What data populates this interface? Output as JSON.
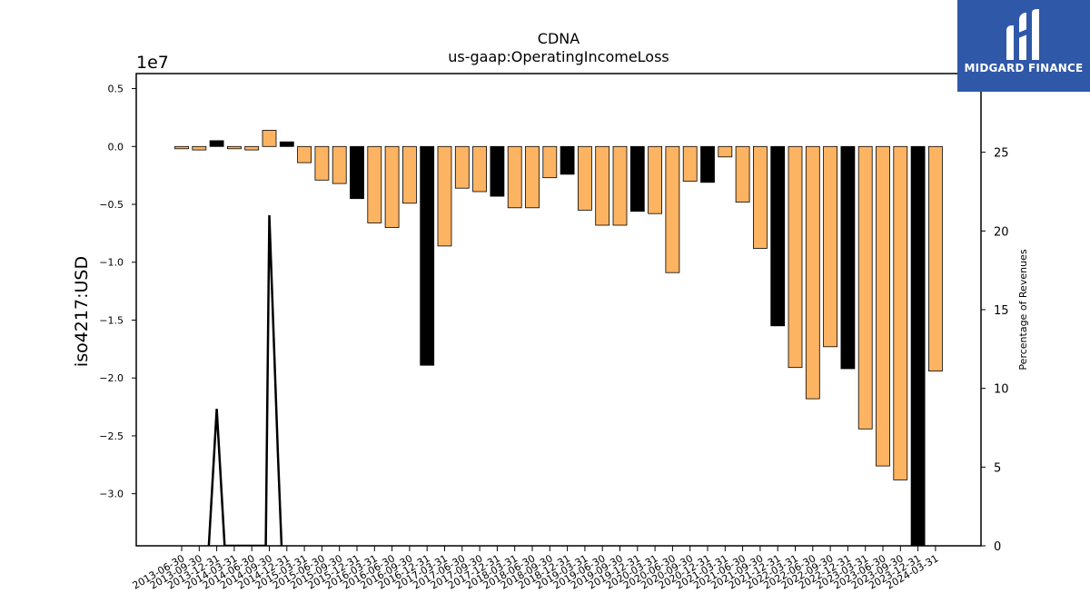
{
  "chart_data": {
    "type": "bar",
    "title": "CDNA",
    "subtitle": "us-gaap:OperatingIncomeLoss",
    "ylabel": "iso4217:USD",
    "y_scale_label": "1e7",
    "y2label": "Percentage of Revenues",
    "ylim": [
      -3.45,
      0.63
    ],
    "y2lim": [
      0,
      30
    ],
    "yticks": [
      "0.5",
      "0.0",
      "−0.5",
      "−1.0",
      "−1.5",
      "−2.0",
      "−2.5",
      "−3.0"
    ],
    "yticks_values": [
      0.5,
      0.0,
      -0.5,
      -1.0,
      -1.5,
      -2.0,
      -2.5,
      -3.0
    ],
    "y2ticks": [
      "0",
      "5",
      "10",
      "15",
      "20",
      "25",
      "30"
    ],
    "y2ticks_values": [
      0,
      5,
      10,
      15,
      20,
      25,
      30
    ],
    "categories": [
      "2013-06-30",
      "2013-09-30",
      "2013-12-31",
      "2014-03-31",
      "2014-06-30",
      "2014-09-30",
      "2014-12-31",
      "2015-03-31",
      "2015-06-30",
      "2015-09-30",
      "2015-12-31",
      "2016-03-31",
      "2016-06-30",
      "2016-09-30",
      "2016-12-31",
      "2017-03-31",
      "2017-06-30",
      "2017-09-30",
      "2017-12-31",
      "2018-03-31",
      "2018-06-30",
      "2018-09-30",
      "2018-12-31",
      "2019-03-31",
      "2019-06-30",
      "2019-09-30",
      "2019-12-31",
      "2020-03-31",
      "2020-06-30",
      "2020-09-30",
      "2020-12-31",
      "2021-03-31",
      "2021-06-30",
      "2021-09-30",
      "2021-12-31",
      "2022-03-31",
      "2022-06-30",
      "2022-09-30",
      "2022-12-31",
      "2023-03-31",
      "2023-06-30",
      "2023-09-30",
      "2023-12-31",
      "2024-03-31"
    ],
    "values": [
      -0.02,
      -0.03,
      0.05,
      -0.02,
      -0.03,
      0.14,
      0.04,
      -0.14,
      -0.29,
      -0.32,
      -0.45,
      -0.66,
      -0.7,
      -0.49,
      -1.89,
      -0.86,
      -0.36,
      -0.39,
      -0.43,
      -0.53,
      -0.53,
      -0.27,
      -0.24,
      -0.55,
      -0.68,
      -0.68,
      -0.56,
      -0.58,
      -1.09,
      -0.3,
      -0.31,
      -0.09,
      -0.48,
      -0.88,
      -1.55,
      -1.91,
      -2.18,
      -1.73,
      -1.92,
      -2.44,
      -2.76,
      -2.88,
      -3.5,
      -1.94
    ],
    "annual": [
      false,
      false,
      true,
      false,
      false,
      false,
      true,
      false,
      false,
      false,
      true,
      false,
      false,
      false,
      true,
      false,
      false,
      false,
      true,
      false,
      false,
      false,
      true,
      false,
      false,
      false,
      true,
      false,
      false,
      false,
      true,
      false,
      false,
      false,
      true,
      false,
      false,
      false,
      true,
      false,
      false,
      false,
      true,
      false
    ],
    "line_series": {
      "name": "Percentage of Revenues",
      "points": [
        [
          1,
          -1.5
        ],
        [
          1.55,
          0
        ],
        [
          2,
          8.7
        ],
        [
          2.45,
          0
        ],
        [
          3.3,
          0
        ],
        [
          4.8,
          0
        ],
        [
          5,
          21
        ],
        [
          5.5,
          5.6
        ],
        [
          5.75,
          -1.5
        ]
      ]
    },
    "colors": {
      "quarter_bar": "#fdb462",
      "annual_bar": "#000000",
      "line": "#000000"
    },
    "grid": false,
    "legend": "none"
  },
  "logo": {
    "text": "MIDGARD FINANCE",
    "icon": "midgard-logo-icon"
  }
}
